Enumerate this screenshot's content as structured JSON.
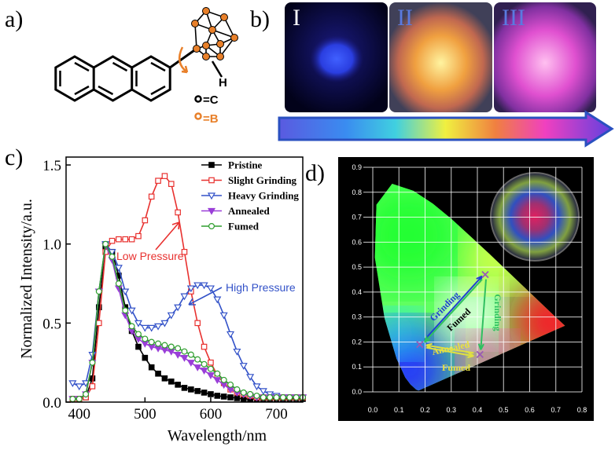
{
  "panels": {
    "a": {
      "label": "a)",
      "atom_labels": [
        "H",
        "=C",
        "=B"
      ]
    },
    "b": {
      "label": "b)",
      "photo_labels": [
        "I",
        "II",
        "III"
      ]
    },
    "c": {
      "label": "c)"
    },
    "d": {
      "label": "d)"
    }
  },
  "chart_data": [
    {
      "type": "line",
      "x_label": "Wavelength/nm",
      "y_label": "Normalized Intensity/a.u.",
      "x": [
        390,
        400,
        410,
        420,
        430,
        440,
        450,
        460,
        470,
        480,
        490,
        500,
        510,
        520,
        530,
        540,
        550,
        560,
        570,
        580,
        590,
        600,
        610,
        620,
        630,
        640,
        650,
        660,
        670,
        680,
        690,
        700,
        710,
        720,
        730,
        740
      ],
      "series": [
        {
          "name": "Pristine",
          "color": "#000000",
          "marker": "square-filled",
          "values": [
            0.02,
            0.02,
            0.03,
            0.15,
            0.6,
            0.98,
            0.95,
            0.8,
            0.6,
            0.45,
            0.35,
            0.28,
            0.22,
            0.18,
            0.15,
            0.13,
            0.11,
            0.09,
            0.08,
            0.07,
            0.06,
            0.05,
            0.04,
            0.035,
            0.03,
            0.025,
            0.02,
            0.02,
            0.02,
            0.02,
            0.02,
            0.02,
            0.02,
            0.02,
            0.02,
            0.02
          ]
        },
        {
          "name": "Slight Grinding",
          "color": "#e8312f",
          "marker": "square-open",
          "values": [
            0.02,
            0.02,
            0.03,
            0.1,
            0.5,
            0.95,
            1.02,
            1.03,
            1.03,
            1.03,
            1.05,
            1.15,
            1.3,
            1.4,
            1.43,
            1.38,
            1.2,
            0.95,
            0.7,
            0.5,
            0.35,
            0.25,
            0.17,
            0.12,
            0.08,
            0.06,
            0.05,
            0.04,
            0.03,
            0.03,
            0.03,
            0.03,
            0.03,
            0.03,
            0.03,
            0.03
          ]
        },
        {
          "name": "Heavy Grinding",
          "color": "#3352c8",
          "marker": "triangle-down-open",
          "values": [
            0.12,
            0.1,
            0.12,
            0.3,
            0.7,
            1.0,
            0.95,
            0.85,
            0.7,
            0.58,
            0.5,
            0.47,
            0.47,
            0.48,
            0.5,
            0.55,
            0.6,
            0.67,
            0.72,
            0.74,
            0.74,
            0.72,
            0.65,
            0.55,
            0.43,
            0.32,
            0.23,
            0.16,
            0.1,
            0.07,
            0.05,
            0.04,
            0.03,
            0.03,
            0.03,
            0.03
          ]
        },
        {
          "name": "Annealed",
          "color": "#9a3fd8",
          "marker": "triangle-down-filled",
          "values": [
            0.02,
            0.02,
            0.05,
            0.25,
            0.7,
            0.99,
            0.9,
            0.72,
            0.55,
            0.45,
            0.4,
            0.37,
            0.35,
            0.34,
            0.33,
            0.32,
            0.3,
            0.28,
            0.25,
            0.22,
            0.2,
            0.17,
            0.14,
            0.11,
            0.08,
            0.06,
            0.05,
            0.04,
            0.03,
            0.03,
            0.03,
            0.03,
            0.03,
            0.03,
            0.03,
            0.03
          ]
        },
        {
          "name": "Fumed",
          "color": "#2e9e2e",
          "marker": "circle-open",
          "values": [
            0.02,
            0.02,
            0.05,
            0.25,
            0.7,
            1.0,
            0.92,
            0.75,
            0.58,
            0.48,
            0.43,
            0.4,
            0.38,
            0.37,
            0.36,
            0.35,
            0.34,
            0.32,
            0.3,
            0.27,
            0.24,
            0.21,
            0.18,
            0.14,
            0.11,
            0.08,
            0.06,
            0.05,
            0.04,
            0.03,
            0.03,
            0.03,
            0.03,
            0.03,
            0.03,
            0.03
          ]
        }
      ],
      "annotations": [
        "Low Pressure",
        "High Pressure"
      ],
      "xlim": [
        380,
        740
      ],
      "xticks": [
        400,
        500,
        600,
        700
      ],
      "ylim": [
        0,
        1.55
      ],
      "yticks": [
        {
          "value": 0,
          "label": "0.0"
        },
        0.5,
        {
          "value": 1,
          "label": "1.0"
        },
        1.5
      ],
      "legend": "upper right"
    },
    {
      "type": "scatter",
      "x": [
        0.43,
        0.18,
        0.41
      ],
      "values": [
        0.47,
        0.19,
        0.15
      ],
      "color": "#9b59b6",
      "annotations": [
        "Grinding",
        "Grinding",
        "Fumed",
        "Annealed",
        "Fumed"
      ],
      "xlim": [
        0,
        0.8
      ],
      "xticks": [
        {
          "value": 0,
          "label": "0.0"
        },
        0.1,
        0.2,
        0.3,
        0.4,
        0.5,
        0.6,
        0.7,
        0.8
      ],
      "ylim": [
        0,
        0.9
      ],
      "yticks": [
        {
          "value": 0,
          "label": "0.0"
        },
        0.1,
        0.2,
        0.3,
        0.4,
        0.5,
        0.6,
        0.7,
        0.8,
        0.9
      ],
      "grid": true
    }
  ]
}
